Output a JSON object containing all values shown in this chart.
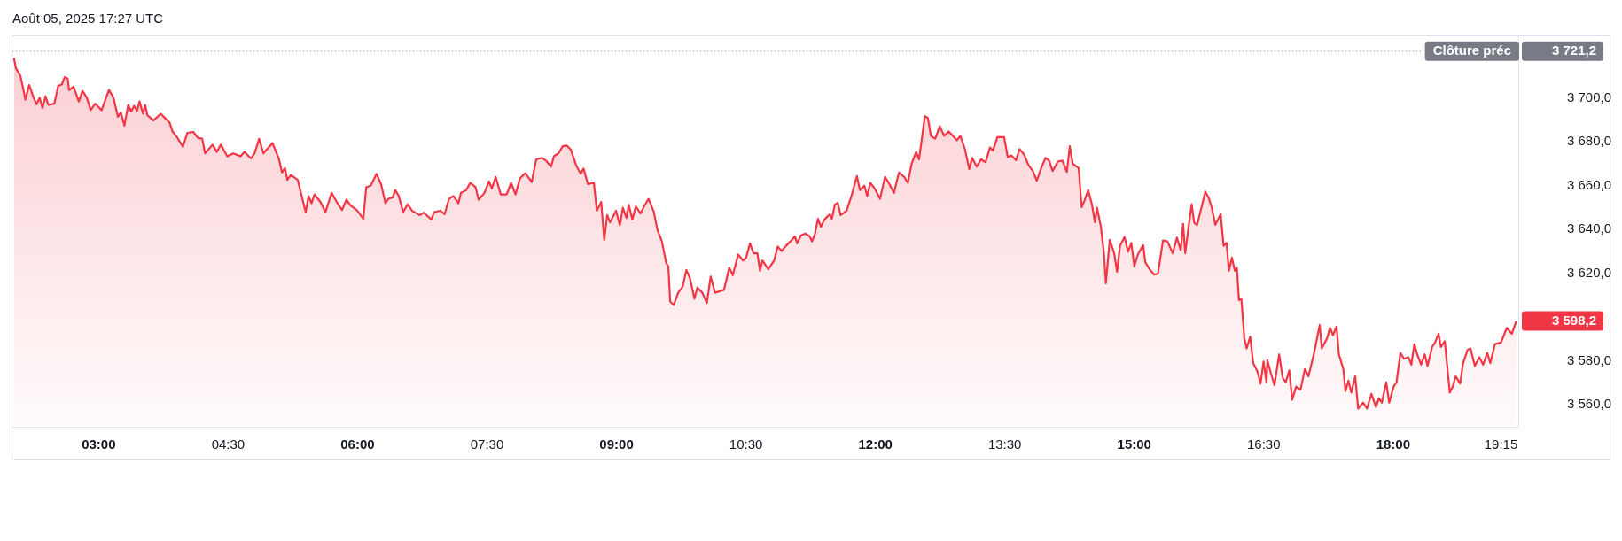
{
  "chart_data": {
    "type": "area",
    "title": "Août 05, 2025 17:27 UTC",
    "x": [
      2.017,
      2.041,
      2.092,
      2.126,
      2.15,
      2.195,
      2.246,
      2.28,
      2.315,
      2.349,
      2.383,
      2.417,
      2.486,
      2.531,
      2.572,
      2.606,
      2.64,
      2.657,
      2.709,
      2.77,
      2.812,
      2.863,
      2.907,
      2.959,
      3.034,
      3.079,
      3.12,
      3.171,
      3.223,
      3.257,
      3.298,
      3.342,
      3.377,
      3.411,
      3.445,
      3.473,
      3.514,
      3.538,
      3.565,
      3.634,
      3.719,
      3.822,
      3.856,
      3.908,
      3.976,
      4.028,
      4.096,
      4.148,
      4.199,
      4.233,
      4.319,
      4.37,
      4.415,
      4.49,
      4.559,
      4.644,
      4.689,
      4.764,
      4.805,
      4.86,
      4.908,
      4.953,
      5.014,
      5.09,
      5.124,
      5.158,
      5.186,
      5.227,
      5.306,
      5.398,
      5.432,
      5.466,
      5.501,
      5.569,
      5.628,
      5.699,
      5.758,
      5.819,
      5.871,
      5.912,
      5.997,
      6.066,
      6.1,
      6.152,
      6.22,
      6.272,
      6.323,
      6.357,
      6.408,
      6.436,
      6.477,
      6.528,
      6.58,
      6.631,
      6.717,
      6.768,
      6.854,
      6.888,
      6.956,
      7.008,
      7.059,
      7.11,
      7.169,
      7.196,
      7.258,
      7.306,
      7.367,
      7.402,
      7.47,
      7.522,
      7.556,
      7.6,
      7.659,
      7.727,
      7.779,
      7.83,
      7.881,
      7.943,
      8.018,
      8.07,
      8.138,
      8.19,
      8.241,
      8.275,
      8.327,
      8.378,
      8.423,
      8.471,
      8.532,
      8.584,
      8.618,
      8.669,
      8.738,
      8.772,
      8.823,
      8.858,
      8.892,
      8.926,
      8.995,
      9.039,
      9.074,
      9.115,
      9.142,
      9.183,
      9.224,
      9.279,
      9.32,
      9.372,
      9.433,
      9.474,
      9.526,
      9.577,
      9.601,
      9.622,
      9.663,
      9.714,
      9.766,
      9.81,
      9.851,
      9.903,
      9.937,
      9.995,
      10.047,
      10.091,
      10.142,
      10.245,
      10.307,
      10.348,
      10.41,
      10.468,
      10.502,
      10.547,
      10.588,
      10.632,
      10.663,
      10.691,
      10.759,
      10.827,
      10.868,
      10.913,
      10.964,
      11.016,
      11.067,
      11.094,
      11.136,
      11.187,
      11.238,
      11.266,
      11.3,
      11.334,
      11.369,
      11.41,
      11.471,
      11.495,
      11.53,
      11.564,
      11.598,
      11.667,
      11.725,
      11.786,
      11.821,
      11.872,
      11.906,
      11.941,
      11.992,
      12.054,
      12.112,
      12.163,
      12.215,
      12.273,
      12.335,
      12.376,
      12.42,
      12.472,
      12.506,
      12.574,
      12.609,
      12.643,
      12.694,
      12.746,
      12.797,
      12.849,
      12.9,
      12.945,
      12.985,
      13.037,
      13.088,
      13.122,
      13.174,
      13.225,
      13.277,
      13.328,
      13.362,
      13.414,
      13.492,
      13.534,
      13.575,
      13.63,
      13.671,
      13.722,
      13.774,
      13.825,
      13.87,
      13.928,
      13.972,
      14.013,
      14.054,
      14.116,
      14.168,
      14.219,
      14.253,
      14.287,
      14.356,
      14.39,
      14.424,
      14.466,
      14.51,
      14.544,
      14.568,
      14.613,
      14.647,
      14.671,
      14.716,
      14.767,
      14.801,
      14.835,
      14.887,
      14.928,
      14.966,
      15.0,
      15.041,
      15.103,
      15.127,
      15.178,
      15.229,
      15.274,
      15.333,
      15.384,
      15.446,
      15.494,
      15.538,
      15.566,
      15.59,
      15.631,
      15.665,
      15.693,
      15.727,
      15.778,
      15.823,
      15.864,
      15.898,
      15.939,
      16.001,
      16.035,
      16.069,
      16.097,
      16.131,
      16.165,
      16.189,
      16.213,
      16.241,
      16.275,
      16.302,
      16.343,
      16.378,
      16.429,
      16.463,
      16.498,
      16.532,
      16.542,
      16.583,
      16.624,
      16.679,
      16.72,
      16.755,
      16.796,
      16.83,
      16.875,
      16.926,
      16.977,
      17.018,
      17.08,
      17.149,
      17.173,
      17.234,
      17.268,
      17.302,
      17.344,
      17.371,
      17.423,
      17.447,
      17.481,
      17.515,
      17.56,
      17.594,
      17.652,
      17.697,
      17.748,
      17.8,
      17.834,
      17.868,
      17.92,
      17.954,
      18.005,
      18.039,
      18.084,
      18.125,
      18.176,
      18.211,
      18.245,
      18.279,
      18.324,
      18.365,
      18.399,
      18.451,
      18.485,
      18.526,
      18.553,
      18.598,
      18.656,
      18.69,
      18.725,
      18.776,
      18.81,
      18.862,
      18.896,
      18.947,
      18.999,
      19.043,
      19.091,
      19.125,
      19.18,
      19.249,
      19.317,
      19.375,
      19.427
    ],
    "series": [
      {
        "color": "#f23645",
        "values": [
          3718.1,
          3713.4,
          3710.0,
          3704.0,
          3699.1,
          3705.8,
          3700.0,
          3697.0,
          3700.0,
          3695.3,
          3700.7,
          3696.7,
          3697.3,
          3705.4,
          3706.0,
          3709.4,
          3708.7,
          3703.4,
          3705.0,
          3698.3,
          3703.1,
          3700.0,
          3694.3,
          3697.3,
          3694.3,
          3699.3,
          3703.6,
          3700.0,
          3691.3,
          3693.3,
          3687.3,
          3696.7,
          3693.7,
          3696.3,
          3694.0,
          3698.3,
          3692.7,
          3696.7,
          3692.0,
          3689.6,
          3692.7,
          3688.6,
          3684.6,
          3682.0,
          3677.7,
          3684.0,
          3684.4,
          3681.7,
          3681.3,
          3674.6,
          3678.6,
          3675.3,
          3678.6,
          3673.3,
          3674.6,
          3673.3,
          3675.3,
          3672.3,
          3674.6,
          3681.3,
          3674.6,
          3676.6,
          3679.3,
          3671.9,
          3665.9,
          3667.9,
          3662.6,
          3664.8,
          3662.6,
          3647.9,
          3655.2,
          3651.9,
          3655.9,
          3652.5,
          3647.9,
          3656.6,
          3652.5,
          3648.8,
          3653.6,
          3651.2,
          3648.5,
          3644.8,
          3659.2,
          3659.9,
          3665.3,
          3660.6,
          3651.9,
          3653.9,
          3654.6,
          3657.9,
          3655.2,
          3647.9,
          3651.5,
          3648.5,
          3646.5,
          3647.6,
          3644.5,
          3647.9,
          3648.5,
          3646.9,
          3653.9,
          3655.2,
          3651.9,
          3656.6,
          3657.9,
          3661.2,
          3659.2,
          3653.5,
          3656.6,
          3661.9,
          3658.6,
          3663.9,
          3655.9,
          3655.9,
          3661.2,
          3655.9,
          3663.2,
          3665.6,
          3661.6,
          3671.9,
          3672.6,
          3671.0,
          3668.6,
          3673.3,
          3674.6,
          3677.9,
          3678.2,
          3676.3,
          3669.3,
          3665.3,
          3667.7,
          3660.6,
          3661.2,
          3648.5,
          3652.5,
          3635.2,
          3646.5,
          3643.2,
          3648.5,
          3641.8,
          3649.9,
          3645.2,
          3651.2,
          3644.5,
          3650.5,
          3647.2,
          3650.5,
          3653.9,
          3647.9,
          3639.8,
          3634.5,
          3624.5,
          3623.1,
          3607.1,
          3605.5,
          3611.1,
          3613.8,
          3621.5,
          3617.8,
          3608.4,
          3613.5,
          3611.1,
          3606.4,
          3618.5,
          3611.1,
          3612.4,
          3622.5,
          3619.1,
          3628.5,
          3625.8,
          3627.1,
          3633.6,
          3629.1,
          3629.1,
          3621.1,
          3625.8,
          3621.8,
          3625.8,
          3632.2,
          3630.1,
          3632.5,
          3634.5,
          3636.8,
          3633.6,
          3637.2,
          3638.1,
          3636.8,
          3634.5,
          3637.9,
          3644.8,
          3641.2,
          3644.5,
          3646.9,
          3644.8,
          3651.2,
          3652.1,
          3646.5,
          3648.5,
          3655.5,
          3664.3,
          3657.9,
          3659.9,
          3655.2,
          3661.2,
          3658.6,
          3653.9,
          3663.9,
          3660.6,
          3656.6,
          3665.9,
          3663.9,
          3661.2,
          3669.9,
          3675.3,
          3671.9,
          3691.6,
          3690.7,
          3682.6,
          3681.3,
          3687.0,
          3682.6,
          3684.6,
          3682.6,
          3680.6,
          3682.6,
          3676.6,
          3667.5,
          3672.6,
          3668.6,
          3671.9,
          3670.6,
          3677.3,
          3675.9,
          3682.0,
          3682.0,
          3672.9,
          3673.7,
          3671.5,
          3676.6,
          3674.2,
          3669.3,
          3666.6,
          3662.2,
          3668.6,
          3672.6,
          3671.3,
          3666.6,
          3671.0,
          3671.3,
          3666.2,
          3677.9,
          3669.9,
          3667.9,
          3650.1,
          3653.2,
          3657.9,
          3651.2,
          3643.2,
          3649.9,
          3641.2,
          3629.8,
          3615.4,
          3635.2,
          3629.1,
          3620.7,
          3632.5,
          3636.5,
          3629.8,
          3633.8,
          3623.1,
          3628.5,
          3632.8,
          3625.1,
          3621.8,
          3619.4,
          3619.8,
          3634.9,
          3634.5,
          3629.1,
          3636.2,
          3630.5,
          3642.5,
          3629.1,
          3641.8,
          3651.5,
          3643.2,
          3641.8,
          3649.9,
          3657.2,
          3654.2,
          3649.9,
          3642.1,
          3647.0,
          3632.5,
          3633.8,
          3621.1,
          3627.1,
          3621.1,
          3622.5,
          3607.7,
          3608.4,
          3590.4,
          3585.7,
          3591.0,
          3579.0,
          3575.0,
          3569.7,
          3579.7,
          3570.3,
          3580.4,
          3574.3,
          3569.0,
          3583.0,
          3572.3,
          3570.3,
          3575.7,
          3562.3,
          3568.3,
          3566.9,
          3576.3,
          3573.0,
          3583.0,
          3596.4,
          3585.7,
          3590.4,
          3595.1,
          3591.7,
          3595.7,
          3583.0,
          3576.3,
          3566.3,
          3571.0,
          3565.6,
          3573.0,
          3558.3,
          3561.0,
          3558.3,
          3565.0,
          3559.0,
          3563.0,
          3561.0,
          3570.3,
          3561.0,
          3568.3,
          3570.3,
          3583.7,
          3581.0,
          3581.7,
          3578.3,
          3587.7,
          3583.0,
          3578.3,
          3583.0,
          3577.7,
          3586.4,
          3588.4,
          3592.4,
          3586.4,
          3589.0,
          3565.6,
          3568.3,
          3573.0,
          3569.7,
          3579.0,
          3585.0,
          3585.7,
          3577.7,
          3581.7,
          3578.3,
          3583.7,
          3579.0,
          3587.7,
          3588.4,
          3595.1,
          3592.4,
          3598.2
        ]
      }
    ],
    "xlim": [
      2.0,
      19.45
    ],
    "ylim": [
      3550,
      3728
    ],
    "xticks": [
      {
        "value": 3,
        "label": "03:00"
      },
      {
        "value": 4.5,
        "label": "04:30"
      },
      {
        "value": 6,
        "label": "06:00"
      },
      {
        "value": 7.5,
        "label": "07:30"
      },
      {
        "value": 9,
        "label": "09:00"
      },
      {
        "value": 10.5,
        "label": "10:30"
      },
      {
        "value": 12,
        "label": "12:00"
      },
      {
        "value": 13.5,
        "label": "13:30"
      },
      {
        "value": 15,
        "label": "15:00"
      },
      {
        "value": 16.5,
        "label": "16:30"
      },
      {
        "value": 18,
        "label": "18:00"
      },
      {
        "value": 19.25,
        "label": "19:15"
      }
    ],
    "yticks": [
      {
        "value": 3560,
        "label": "3 560,0"
      },
      {
        "value": 3580,
        "label": "3 580,0"
      },
      {
        "value": 3620,
        "label": "3 620,0"
      },
      {
        "value": 3640,
        "label": "3 640,0"
      },
      {
        "value": 3660,
        "label": "3 660,0"
      },
      {
        "value": 3680,
        "label": "3 680,0"
      },
      {
        "value": 3700,
        "label": "3 700,0"
      }
    ],
    "ref_lines": [
      {
        "axis": "y",
        "value": 3721.2,
        "label": "Clôture préc",
        "color": "#787b86",
        "line_style": "dotted"
      }
    ],
    "annotations": [
      "3 721,2",
      {
        "text": "3 598,2",
        "x": 19.427,
        "y": 3598.2
      }
    ],
    "grid": false,
    "legend": false,
    "marker": "none",
    "line_style": "solid"
  }
}
